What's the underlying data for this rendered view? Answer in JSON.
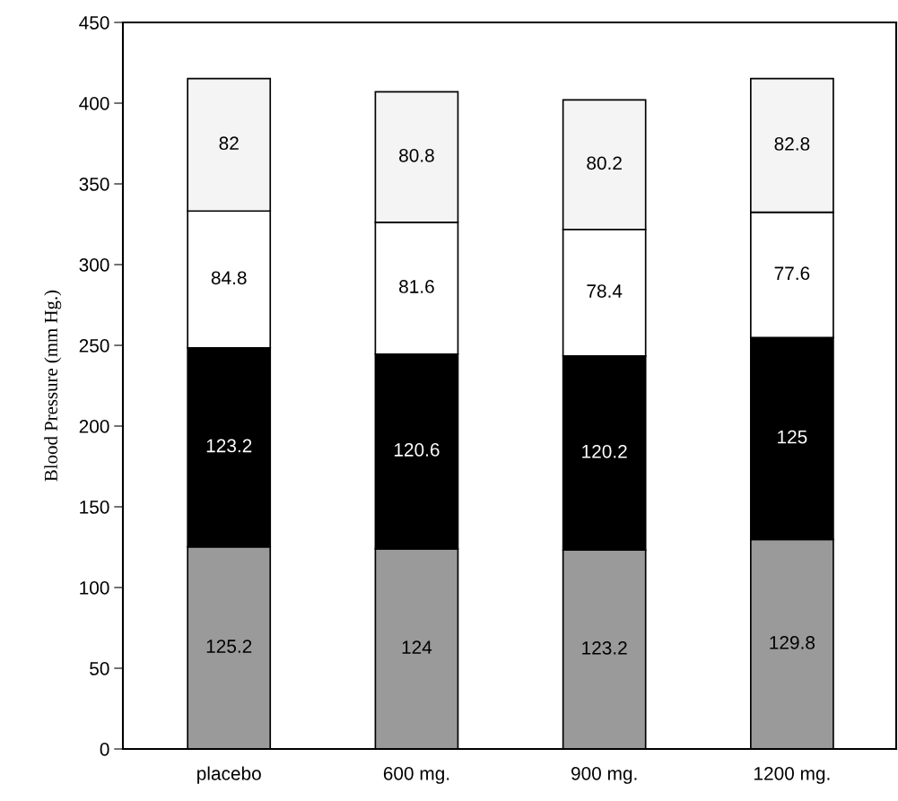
{
  "chart_data": {
    "type": "bar",
    "stacked": true,
    "ylabel": "Blood Pressure (mm Hg.)",
    "categories": [
      "placebo",
      "600 mg.",
      "900 mg.",
      "1200 mg."
    ],
    "series": [
      {
        "color": "#9a9a9a",
        "values": [
          125.2,
          124,
          123.2,
          129.8
        ]
      },
      {
        "color": "#000000",
        "values": [
          123.2,
          120.6,
          120.2,
          125
        ]
      },
      {
        "color": "#ffffff",
        "values": [
          84.8,
          81.6,
          78.4,
          77.6
        ]
      },
      {
        "color": "#f4f4f4",
        "values": [
          82,
          80.8,
          80.2,
          82.8
        ]
      }
    ],
    "ylim": [
      0,
      450
    ],
    "yticks": [
      0,
      50,
      100,
      150,
      200,
      250,
      300,
      350,
      400,
      450
    ],
    "data_labels": true,
    "grid": false,
    "legend": false
  }
}
